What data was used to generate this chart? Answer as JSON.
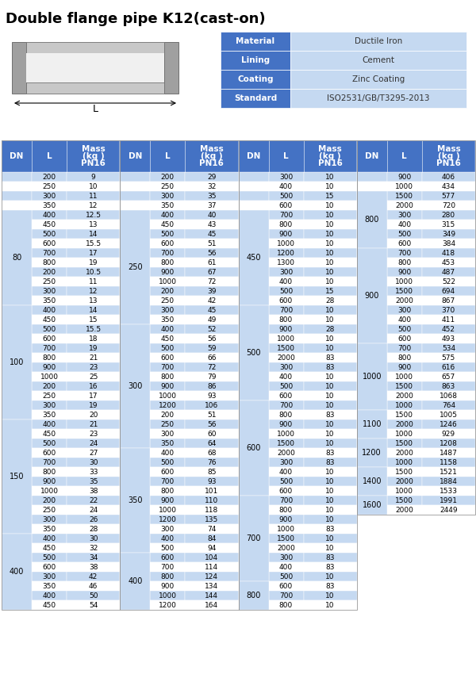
{
  "title": "Double flange pipe K12(cast-on)",
  "info_table": [
    [
      "Material",
      "Ductile Iron"
    ],
    [
      "Lining",
      "Cement"
    ],
    [
      "Coating",
      "Zinc Coating"
    ],
    [
      "Standard",
      "ISO2531/GB/T3295-2013"
    ]
  ],
  "header_bg": "#4472c4",
  "row_bg_light": "#c5d9f1",
  "row_bg_white": "#ffffff",
  "col1_data": [
    [
      "",
      "200",
      "9"
    ],
    [
      "",
      "250",
      "10"
    ],
    [
      "",
      "300",
      "11"
    ],
    [
      "",
      "350",
      "12"
    ],
    [
      "80",
      "400",
      "12.5"
    ],
    [
      "",
      "450",
      "13"
    ],
    [
      "",
      "500",
      "14"
    ],
    [
      "",
      "600",
      "15.5"
    ],
    [
      "",
      "700",
      "17"
    ],
    [
      "",
      "800",
      "19"
    ],
    [
      "",
      "200",
      "10.5"
    ],
    [
      "",
      "250",
      "11"
    ],
    [
      "",
      "300",
      "12"
    ],
    [
      "",
      "350",
      "13"
    ],
    [
      "100",
      "400",
      "14"
    ],
    [
      "",
      "450",
      "15"
    ],
    [
      "",
      "500",
      "15.5"
    ],
    [
      "",
      "600",
      "18"
    ],
    [
      "",
      "700",
      "19"
    ],
    [
      "",
      "800",
      "21"
    ],
    [
      "",
      "900",
      "23"
    ],
    [
      "",
      "1000",
      "25"
    ],
    [
      "",
      "200",
      "16"
    ],
    [
      "",
      "250",
      "17"
    ],
    [
      "",
      "300",
      "19"
    ],
    [
      "",
      "350",
      "20"
    ],
    [
      "150",
      "400",
      "21"
    ],
    [
      "",
      "450",
      "23"
    ],
    [
      "",
      "500",
      "24"
    ],
    [
      "",
      "600",
      "27"
    ],
    [
      "",
      "700",
      "30"
    ],
    [
      "",
      "800",
      "33"
    ],
    [
      "",
      "900",
      "35"
    ],
    [
      "",
      "1000",
      "38"
    ],
    [
      "",
      "200",
      "22"
    ],
    [
      "",
      "250",
      "24"
    ],
    [
      "",
      "300",
      "26"
    ],
    [
      "",
      "350",
      "28"
    ],
    [
      "400",
      "400",
      "30"
    ],
    [
      "",
      "450",
      "32"
    ],
    [
      "",
      "500",
      "34"
    ],
    [
      "",
      "600",
      "38"
    ],
    [
      "",
      "300",
      "42"
    ],
    [
      "",
      "350",
      "46"
    ],
    [
      "",
      "400",
      "50"
    ],
    [
      "",
      "450",
      "54"
    ]
  ],
  "col2_data": [
    [
      "",
      "200",
      "29"
    ],
    [
      "",
      "250",
      "32"
    ],
    [
      "",
      "300",
      "35"
    ],
    [
      "",
      "350",
      "37"
    ],
    [
      "250",
      "400",
      "40"
    ],
    [
      "",
      "450",
      "43"
    ],
    [
      "",
      "500",
      "45"
    ],
    [
      "",
      "600",
      "51"
    ],
    [
      "",
      "700",
      "56"
    ],
    [
      "",
      "800",
      "61"
    ],
    [
      "",
      "900",
      "67"
    ],
    [
      "",
      "1000",
      "72"
    ],
    [
      "",
      "200",
      "39"
    ],
    [
      "",
      "250",
      "42"
    ],
    [
      "",
      "300",
      "45"
    ],
    [
      "",
      "350",
      "49"
    ],
    [
      "300",
      "400",
      "52"
    ],
    [
      "",
      "450",
      "56"
    ],
    [
      "",
      "500",
      "59"
    ],
    [
      "",
      "600",
      "66"
    ],
    [
      "",
      "700",
      "72"
    ],
    [
      "",
      "800",
      "79"
    ],
    [
      "",
      "900",
      "86"
    ],
    [
      "",
      "1000",
      "93"
    ],
    [
      "",
      "1200",
      "106"
    ],
    [
      "",
      "200",
      "51"
    ],
    [
      "",
      "250",
      "56"
    ],
    [
      "",
      "300",
      "60"
    ],
    [
      "",
      "350",
      "64"
    ],
    [
      "350",
      "400",
      "68"
    ],
    [
      "",
      "500",
      "76"
    ],
    [
      "",
      "600",
      "85"
    ],
    [
      "",
      "700",
      "93"
    ],
    [
      "",
      "800",
      "101"
    ],
    [
      "",
      "900",
      "110"
    ],
    [
      "",
      "1000",
      "118"
    ],
    [
      "",
      "1200",
      "135"
    ],
    [
      "",
      "300",
      "74"
    ],
    [
      "",
      "400",
      "84"
    ],
    [
      "",
      "500",
      "94"
    ],
    [
      "400",
      "600",
      "104"
    ],
    [
      "",
      "700",
      "114"
    ],
    [
      "",
      "800",
      "124"
    ],
    [
      "",
      "900",
      "134"
    ],
    [
      "",
      "1000",
      "144"
    ],
    [
      "",
      "1200",
      "164"
    ]
  ],
  "col3_data": [
    [
      "",
      "300",
      "10"
    ],
    [
      "",
      "400",
      "10"
    ],
    [
      "",
      "500",
      "15"
    ],
    [
      "",
      "600",
      "10"
    ],
    [
      "450",
      "700",
      "10"
    ],
    [
      "",
      "800",
      "10"
    ],
    [
      "",
      "900",
      "10"
    ],
    [
      "",
      "1000",
      "10"
    ],
    [
      "",
      "1200",
      "10"
    ],
    [
      "",
      "1300",
      "10"
    ],
    [
      "",
      "300",
      "10"
    ],
    [
      "",
      "400",
      "10"
    ],
    [
      "",
      "500",
      "15"
    ],
    [
      "",
      "600",
      "28"
    ],
    [
      "500",
      "700",
      "10"
    ],
    [
      "",
      "800",
      "10"
    ],
    [
      "",
      "900",
      "28"
    ],
    [
      "",
      "1000",
      "10"
    ],
    [
      "",
      "1500",
      "10"
    ],
    [
      "",
      "2000",
      "83"
    ],
    [
      "",
      "300",
      "83"
    ],
    [
      "",
      "400",
      "10"
    ],
    [
      "",
      "500",
      "10"
    ],
    [
      "",
      "600",
      "10"
    ],
    [
      "600",
      "700",
      "10"
    ],
    [
      "",
      "800",
      "83"
    ],
    [
      "",
      "900",
      "10"
    ],
    [
      "",
      "1000",
      "10"
    ],
    [
      "",
      "1500",
      "10"
    ],
    [
      "",
      "2000",
      "83"
    ],
    [
      "",
      "300",
      "83"
    ],
    [
      "",
      "400",
      "10"
    ],
    [
      "",
      "500",
      "10"
    ],
    [
      "",
      "600",
      "10"
    ],
    [
      "700",
      "700",
      "10"
    ],
    [
      "",
      "800",
      "10"
    ],
    [
      "",
      "900",
      "10"
    ],
    [
      "",
      "1000",
      "83"
    ],
    [
      "",
      "1500",
      "10"
    ],
    [
      "",
      "2000",
      "10"
    ],
    [
      "",
      "300",
      "83"
    ],
    [
      "",
      "400",
      "83"
    ],
    [
      "",
      "500",
      "10"
    ],
    [
      "800",
      "600",
      "83"
    ],
    [
      "",
      "700",
      "10"
    ],
    [
      "",
      "800",
      "10"
    ]
  ],
  "col4_data": [
    [
      "",
      "900",
      "406"
    ],
    [
      "",
      "1000",
      "434"
    ],
    [
      "800",
      "1500",
      "577"
    ],
    [
      "",
      "2000",
      "720"
    ],
    [
      "",
      "300",
      "280"
    ],
    [
      "",
      "400",
      "315"
    ],
    [
      "",
      "500",
      "349"
    ],
    [
      "",
      "600",
      "384"
    ],
    [
      "900",
      "700",
      "418"
    ],
    [
      "",
      "800",
      "453"
    ],
    [
      "",
      "900",
      "487"
    ],
    [
      "",
      "1000",
      "522"
    ],
    [
      "",
      "1500",
      "694"
    ],
    [
      "",
      "2000",
      "867"
    ],
    [
      "",
      "300",
      "370"
    ],
    [
      "",
      "400",
      "411"
    ],
    [
      "",
      "500",
      "452"
    ],
    [
      "",
      "600",
      "493"
    ],
    [
      "1000",
      "700",
      "534"
    ],
    [
      "",
      "800",
      "575"
    ],
    [
      "",
      "900",
      "616"
    ],
    [
      "",
      "1000",
      "657"
    ],
    [
      "",
      "1500",
      "863"
    ],
    [
      "",
      "2000",
      "1068"
    ],
    [
      "",
      "1000",
      "764"
    ],
    [
      "1100",
      "1500",
      "1005"
    ],
    [
      "",
      "2000",
      "1246"
    ],
    [
      "",
      "1000",
      "929"
    ],
    [
      "1200",
      "1500",
      "1208"
    ],
    [
      "",
      "2000",
      "1487"
    ],
    [
      "",
      "1000",
      "1158"
    ],
    [
      "1400",
      "1500",
      "1521"
    ],
    [
      "",
      "2000",
      "1884"
    ],
    [
      "",
      "1000",
      "1533"
    ],
    [
      "1600",
      "1500",
      "1991"
    ],
    [
      "",
      "2000",
      "2449"
    ]
  ]
}
